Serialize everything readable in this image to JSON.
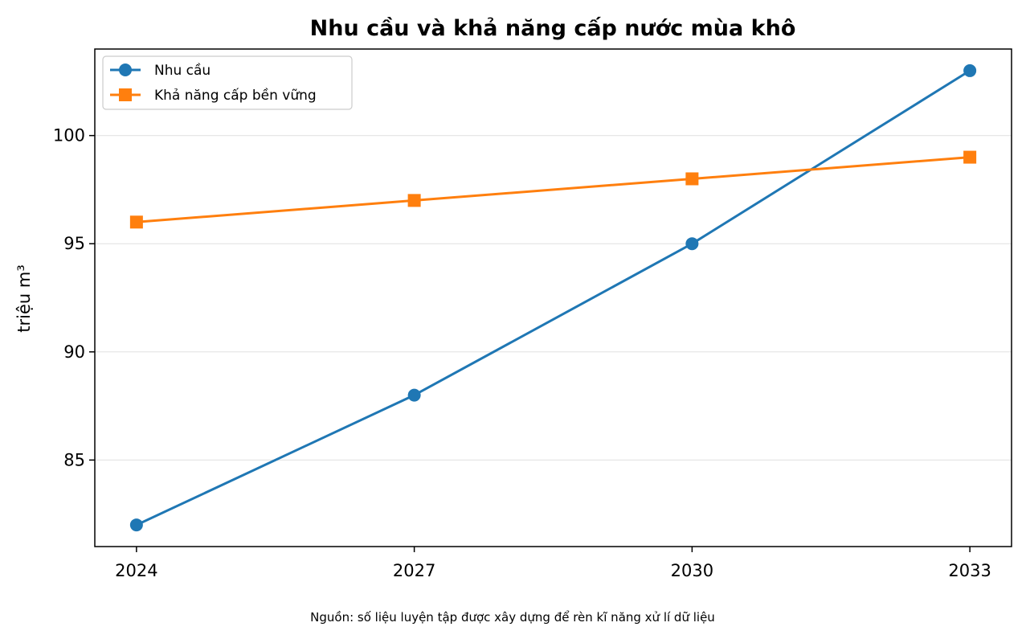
{
  "chart_data": {
    "type": "line",
    "title": "Nhu cầu và khả năng cấp nước mùa khô",
    "xlabel": "",
    "ylabel": "triệu m³",
    "x": [
      2024,
      2027,
      2030,
      2033
    ],
    "x_tick_labels": [
      "2024",
      "2027",
      "2030",
      "2033"
    ],
    "y_ticks": [
      85,
      90,
      95,
      100
    ],
    "y_tick_labels": [
      "85",
      "90",
      "95",
      "100"
    ],
    "xlim": [
      2023.55,
      2033.45
    ],
    "ylim": [
      81.0,
      104.0
    ],
    "grid": "horizontal",
    "legend_position": "top-left",
    "series": [
      {
        "name": "Nhu cầu",
        "values": [
          82,
          88,
          95,
          103
        ],
        "color": "#1f77b4",
        "marker": "circle"
      },
      {
        "name": "Khả năng cấp bền vững",
        "values": [
          96,
          97,
          98,
          99
        ],
        "color": "#ff7f0e",
        "marker": "square"
      }
    ],
    "source_note": "Nguồn: số liệu luyện tập được xây dựng để rèn kĩ năng xử lí dữ liệu"
  }
}
